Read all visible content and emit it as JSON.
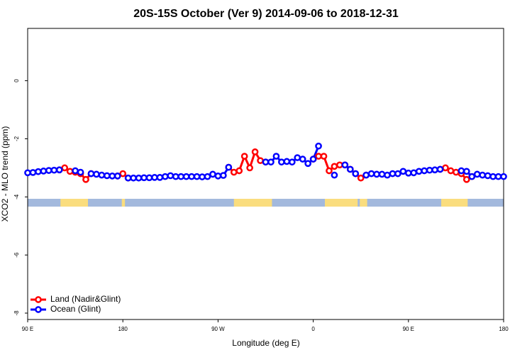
{
  "chart_data": {
    "type": "line",
    "title": "20S-15S October (Ver 9)   2014-09-06 to 2018-12-31",
    "x_label": "Longitude (deg E)",
    "y_label": "XCO2 - MLO trend (ppm)",
    "x": [
      90,
      95,
      100,
      105,
      110,
      115,
      120,
      125,
      130,
      135,
      140,
      145,
      150,
      155,
      160,
      165,
      170,
      175,
      180,
      185,
      190,
      195,
      200,
      205,
      210,
      215,
      220,
      225,
      230,
      235,
      240,
      245,
      250,
      255,
      260,
      265,
      270,
      275,
      280,
      285,
      290,
      295,
      300,
      305,
      310,
      315,
      320,
      325,
      330,
      335,
      340,
      345,
      350,
      355,
      360,
      365,
      370,
      375,
      380,
      385,
      390,
      395,
      400,
      405,
      410,
      415,
      420,
      425,
      430,
      435,
      440,
      445,
      450,
      455,
      460,
      465,
      470,
      475,
      480,
      485,
      490,
      495,
      500,
      505,
      510,
      515,
      520,
      525,
      530,
      535,
      540
    ],
    "series": [
      {
        "name": "Land (Nadir&Glint)",
        "color": "#ff0000",
        "values": [
          null,
          null,
          null,
          null,
          null,
          null,
          -3.07,
          -3.0,
          -3.12,
          -3.15,
          -3.2,
          -3.4,
          -3.2,
          null,
          null,
          null,
          null,
          -3.28,
          -3.2,
          -3.35,
          null,
          null,
          null,
          null,
          null,
          null,
          null,
          null,
          null,
          null,
          null,
          null,
          null,
          null,
          null,
          null,
          null,
          null,
          -2.98,
          -3.15,
          -3.1,
          -2.6,
          -3.0,
          -2.45,
          -2.75,
          -2.8,
          null,
          null,
          null,
          null,
          null,
          null,
          null,
          null,
          -2.7,
          -2.6,
          -2.6,
          -3.1,
          -2.95,
          -2.9,
          -2.9,
          -3.05,
          -3.2,
          -3.35,
          -3.25,
          null,
          null,
          null,
          null,
          null,
          null,
          null,
          null,
          null,
          null,
          null,
          null,
          null,
          -3.05,
          -3.0,
          -3.1,
          -3.15,
          -3.2,
          -3.4,
          -3.3,
          null,
          null,
          null,
          null,
          null,
          null
        ]
      },
      {
        "name": "Ocean (Glint)",
        "color": "#0000ff",
        "values": [
          -3.17,
          -3.16,
          -3.13,
          -3.11,
          -3.09,
          -3.08,
          -3.07,
          null,
          null,
          -3.1,
          -3.15,
          null,
          -3.2,
          -3.22,
          -3.25,
          -3.27,
          -3.28,
          -3.28,
          null,
          -3.35,
          -3.35,
          -3.35,
          -3.34,
          -3.34,
          -3.33,
          -3.33,
          -3.3,
          -3.27,
          -3.3,
          -3.3,
          -3.3,
          -3.3,
          -3.3,
          -3.31,
          -3.3,
          -3.22,
          -3.28,
          -3.26,
          -2.98,
          null,
          null,
          null,
          null,
          null,
          null,
          -2.8,
          -2.8,
          -2.6,
          -2.8,
          -2.78,
          -2.8,
          -2.65,
          -2.7,
          -2.85,
          -2.7,
          -2.25,
          null,
          null,
          -3.25,
          null,
          -2.9,
          -3.05,
          -3.2,
          null,
          -3.25,
          -3.2,
          -3.22,
          -3.22,
          -3.25,
          -3.2,
          -3.2,
          -3.12,
          -3.18,
          -3.17,
          -3.12,
          -3.1,
          -3.08,
          -3.07,
          -3.05,
          null,
          null,
          null,
          -3.1,
          -3.12,
          -3.3,
          -3.22,
          -3.25,
          -3.27,
          -3.3,
          -3.3,
          -3.3
        ]
      }
    ],
    "land_spans": [
      [
        121,
        147
      ],
      [
        179,
        182
      ],
      [
        285,
        321
      ],
      [
        371,
        402
      ],
      [
        404,
        411
      ],
      [
        481,
        506
      ]
    ],
    "ocean_color": "#a3b9dd",
    "land_color": "#fadd7e",
    "xlim": [
      90,
      540
    ],
    "ylim": [
      -8.22,
      1.8
    ],
    "xticks": [
      {
        "value": 90,
        "label": "90 E"
      },
      {
        "value": 180,
        "label": "180"
      },
      {
        "value": 270,
        "label": "90 W"
      },
      {
        "value": 360,
        "label": "0"
      },
      {
        "value": 450,
        "label": "90 E"
      },
      {
        "value": 540,
        "label": "180"
      }
    ],
    "yticks": [
      -8,
      -6,
      -4,
      -2,
      0
    ],
    "legend": "bottom-left"
  }
}
